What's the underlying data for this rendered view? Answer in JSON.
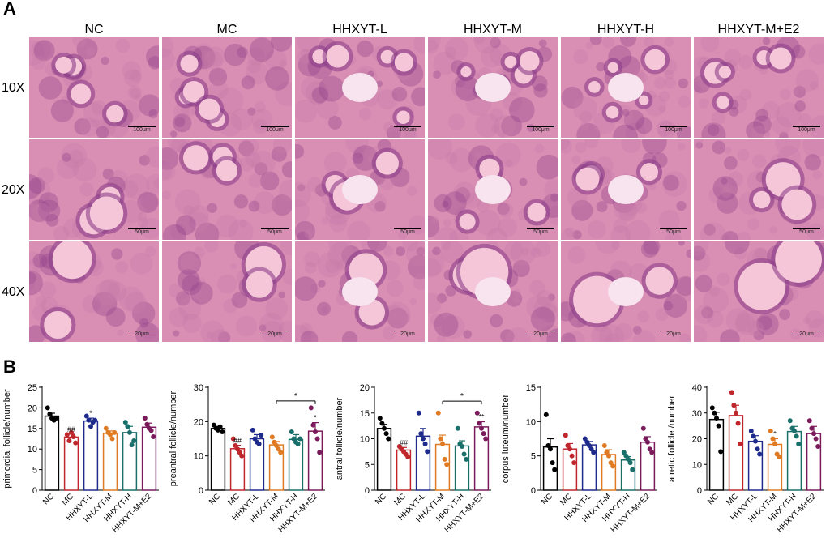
{
  "panels": {
    "a": "A",
    "b": "B"
  },
  "columns": [
    "NC",
    "MC",
    "HHXYT-L",
    "HHXYT-M",
    "HHXYT-H",
    "HHXYT-M+E2"
  ],
  "rows": [
    {
      "label": "10X",
      "scale": "100μm"
    },
    {
      "label": "20X",
      "scale": "50μm"
    },
    {
      "label": "40X",
      "scale": "20μm"
    }
  ],
  "colors": {
    "tissue_bg": "#d98fb4",
    "tissue_dark": "#8e3f8a",
    "follicle": "#f4c6d8",
    "NC": "#000000",
    "MC": "#c0272d",
    "HHXYT-L": "#1f2b8c",
    "HHXYT-M": "#e07b24",
    "HHXYT-H": "#19706b",
    "HHXYT-M+E2": "#7b1b5c"
  },
  "groups": [
    "NC",
    "MC",
    "HHXYT-L",
    "HHXYT-M",
    "HHXYT-H",
    "HHXYT-M+E2"
  ],
  "chart_data": [
    {
      "type": "bar",
      "ylabel": "primordial follicle/number",
      "ylim": [
        0,
        25
      ],
      "yticks": [
        0,
        5,
        10,
        15,
        20,
        25
      ],
      "categories": [
        "NC",
        "MC",
        "HHXYT-L",
        "HHXYT-M",
        "HHXYT-H",
        "HHXYT-M+E2"
      ],
      "values": [
        18,
        12.9,
        16.8,
        13.8,
        14.0,
        15.3
      ],
      "errors": [
        0.7,
        0.7,
        0.7,
        0.6,
        1.5,
        1.0
      ],
      "points": [
        [
          20,
          18.5,
          17.5,
          17,
          17.5
        ],
        [
          13.5,
          12,
          14,
          13,
          11.5
        ],
        [
          18,
          17,
          15.5,
          16.5,
          17
        ],
        [
          15,
          14,
          13.5,
          12.5,
          14
        ],
        [
          16.5,
          15.5,
          14,
          11,
          12
        ],
        [
          17.5,
          16,
          15,
          14.5,
          13
        ]
      ],
      "annotations": [
        {
          "cat": 1,
          "text": "##"
        },
        {
          "cat": 2,
          "text": "*"
        }
      ]
    },
    {
      "type": "bar",
      "ylabel": "preantral follicle/number",
      "ylim": [
        0,
        30
      ],
      "yticks": [
        0,
        10,
        20,
        30
      ],
      "categories": [
        "NC",
        "MC",
        "HHXYT-L",
        "HHXYT-M",
        "HHXYT-H",
        "HHXYT-M+E2"
      ],
      "values": [
        18,
        12.1,
        15.0,
        13.2,
        14.8,
        17.2
      ],
      "errors": [
        0.6,
        1.0,
        1.2,
        1.0,
        1.4,
        2.5
      ],
      "points": [
        [
          19,
          18,
          17.5,
          18.5,
          17
        ],
        [
          15,
          13,
          12,
          11,
          10
        ],
        [
          17.5,
          15,
          14,
          13.5,
          16
        ],
        [
          15.5,
          14,
          13,
          12,
          11
        ],
        [
          17,
          15,
          14,
          13.5,
          15
        ],
        [
          24,
          19,
          17,
          15,
          11
        ]
      ],
      "annotations": [
        {
          "cat": 1,
          "text": "##"
        },
        {
          "cat": 5,
          "text": "*"
        }
      ],
      "brackets": [
        {
          "from": 3,
          "to": 5,
          "y": 26,
          "text": "*"
        }
      ]
    },
    {
      "type": "bar",
      "ylabel": "antral follicle/number",
      "ylim": [
        0,
        20
      ],
      "yticks": [
        0,
        5,
        10,
        15,
        20
      ],
      "categories": [
        "NC",
        "MC",
        "HHXYT-L",
        "HHXYT-M",
        "HHXYT-H",
        "HHXYT-M+E2"
      ],
      "values": [
        12,
        7.8,
        10.5,
        8.9,
        8.6,
        12.3
      ],
      "errors": [
        0.8,
        0.5,
        1.5,
        1.8,
        1.0,
        1.0
      ],
      "points": [
        [
          14,
          13,
          12,
          11,
          10
        ],
        [
          8.5,
          8,
          7.5,
          7,
          6.5
        ],
        [
          15,
          11,
          10,
          9,
          7.5
        ],
        [
          15,
          10,
          9,
          6,
          5
        ],
        [
          12,
          9,
          8.5,
          7,
          6
        ],
        [
          15,
          13,
          12,
          11,
          10
        ]
      ],
      "annotations": [
        {
          "cat": 1,
          "text": "##"
        },
        {
          "cat": 5,
          "text": "**"
        }
      ],
      "brackets": [
        {
          "from": 3,
          "to": 5,
          "y": 17.3,
          "text": "*"
        }
      ]
    },
    {
      "type": "bar",
      "ylabel": "corpus luteum/number",
      "ylim": [
        0,
        15
      ],
      "yticks": [
        0,
        5,
        10,
        15
      ],
      "categories": [
        "NC",
        "MC",
        "HHXYT-L",
        "HHXYT-M",
        "HHXYT-H",
        "HHXYT-M+E2"
      ],
      "values": [
        6.3,
        6.0,
        6.6,
        5.2,
        4.4,
        7.0
      ],
      "errors": [
        1.2,
        0.8,
        0.5,
        0.7,
        0.5,
        0.8
      ],
      "points": [
        [
          11,
          6.5,
          6,
          4,
          3
        ],
        [
          8,
          6.5,
          6,
          5,
          4
        ],
        [
          7.5,
          7,
          6.5,
          6,
          5.5
        ],
        [
          6.5,
          5.5,
          5,
          4,
          3.5
        ],
        [
          5.5,
          5,
          4.5,
          4,
          3
        ],
        [
          9,
          7.5,
          7,
          6,
          5.5
        ]
      ],
      "annotations": []
    },
    {
      "type": "bar",
      "ylabel": "atretic follicle /number",
      "ylim": [
        0,
        40
      ],
      "yticks": [
        0,
        10,
        20,
        30,
        40
      ],
      "categories": [
        "NC",
        "MC",
        "HHXYT-L",
        "HHXYT-M",
        "HHXYT-H",
        "HHXYT-M+E2"
      ],
      "values": [
        27.5,
        29.0,
        19.0,
        17.8,
        22.8,
        22.0
      ],
      "errors": [
        2.8,
        4.0,
        2.2,
        2.2,
        2.0,
        2.8
      ],
      "points": [
        [
          32,
          30,
          28,
          25,
          15
        ],
        [
          38,
          33,
          30,
          26,
          18
        ],
        [
          23,
          21,
          19,
          16,
          14
        ],
        [
          23,
          20,
          18,
          14,
          13
        ],
        [
          27,
          24,
          23,
          21,
          18
        ],
        [
          27,
          24,
          22,
          20,
          17
        ]
      ],
      "annotations": [
        {
          "cat": 3,
          "text": "*"
        }
      ]
    }
  ]
}
